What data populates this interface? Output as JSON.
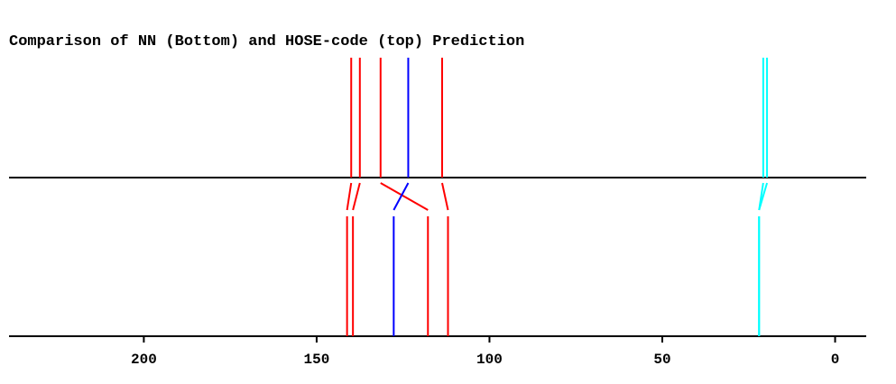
{
  "chart_data": {
    "type": "line",
    "title": "Comparison of NN (Bottom) and HOSE-code (top) Prediction",
    "xlabel": "",
    "ylabel": "",
    "x_axis": {
      "reversed": true,
      "range": [
        239,
        -9
      ],
      "ticks": [
        200,
        150,
        100,
        50,
        0
      ],
      "tick_labels": [
        "200",
        "150",
        "100",
        "50",
        "0"
      ]
    },
    "grid": false,
    "legend": "none",
    "colors": {
      "red": "#ff0000",
      "blue": "#0000ff",
      "cyan": "#00ffff",
      "axis": "#000000"
    },
    "series": [
      {
        "hose": 140.0,
        "nn": 141.2,
        "color": "#ff0000"
      },
      {
        "hose": 137.5,
        "nn": 139.5,
        "color": "#ff0000"
      },
      {
        "hose": 131.5,
        "nn": 117.8,
        "color": "#ff0000"
      },
      {
        "hose": 123.5,
        "nn": 127.7,
        "color": "#0000ff"
      },
      {
        "hose": 113.7,
        "nn": 112.0,
        "color": "#ff0000"
      },
      {
        "hose": 20.8,
        "nn": 22.0,
        "color": "#00ffff"
      },
      {
        "hose": 19.7,
        "nn": 22.0,
        "color": "#00ffff"
      }
    ]
  }
}
